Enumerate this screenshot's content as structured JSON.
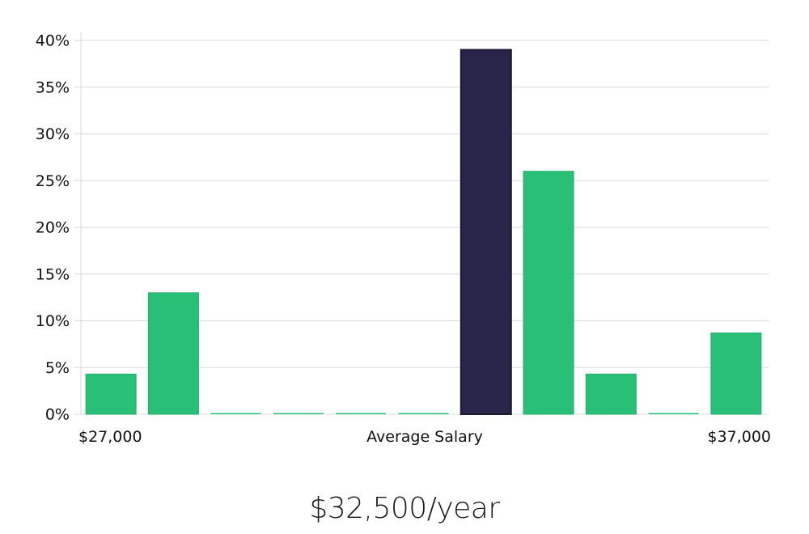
{
  "chart_data": {
    "type": "bar",
    "x_labels": {
      "left": "$27,000",
      "center": "Average Salary",
      "right": "$37,000"
    },
    "y_ticks": [
      "0%",
      "5%",
      "10%",
      "15%",
      "20%",
      "25%",
      "30%",
      "35%",
      "40%"
    ],
    "ylim": [
      0,
      40
    ],
    "values": [
      4.3,
      13.0,
      0,
      0,
      0,
      0,
      39.0,
      26.0,
      4.3,
      0,
      8.7
    ],
    "highlight_index": 6,
    "grid": true,
    "colors": {
      "bar": "#2abf77",
      "bar_border": "#22b06c",
      "highlight": "#28244a",
      "highlight_border": "#1b1838",
      "grid": "#d9d9d9"
    }
  },
  "salary_label": "$32,500/year"
}
